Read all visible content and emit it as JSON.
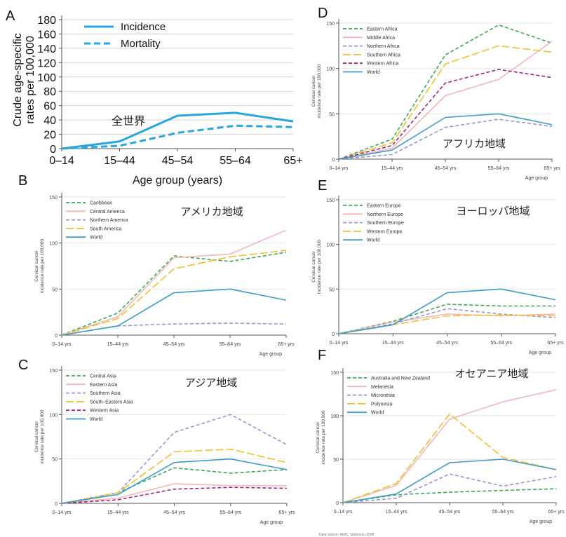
{
  "chart_data": [
    {
      "panel": "A",
      "type": "line",
      "title": "全世界",
      "xlabel": "Age group (years)",
      "ylabel": "Crude age-specific rates per 100,000",
      "categories": [
        "0–14",
        "15–44",
        "45–54",
        "55–64",
        "65+"
      ],
      "yticks": [
        "0",
        "20",
        "40",
        "60",
        "80",
        "100",
        "120",
        "140",
        "160",
        "180"
      ],
      "ylim": [
        0,
        180
      ],
      "grid": true,
      "legend_position": "top-left",
      "series": [
        {
          "name": "Incidence",
          "color": "#26a7df",
          "dash": "solid",
          "values": [
            0,
            10,
            46,
            50,
            38
          ]
        },
        {
          "name": "Mortality",
          "color": "#26a7df",
          "dash": "dashed",
          "values": [
            0,
            4,
            22,
            32,
            30
          ]
        }
      ]
    },
    {
      "panel": "D",
      "type": "line",
      "title": "アフリカ地域",
      "xlabel": "Age group",
      "ylabel": "Cervical cancer incidence rate per 100,000",
      "categories": [
        "0–14 yrs",
        "15–44 yrs",
        "45–54 yrs",
        "55–64 yrs",
        "65+ yrs"
      ],
      "yticks": [
        "0",
        "50",
        "100",
        "150"
      ],
      "ylim": [
        0,
        150
      ],
      "grid": true,
      "legend_position": "top-left",
      "series": [
        {
          "name": "Eastern Africa",
          "color": "#3aaa55",
          "dash": "dashed",
          "values": [
            0,
            22,
            115,
            148,
            128
          ]
        },
        {
          "name": "Middle Africa",
          "color": "#f2b8ba",
          "dash": "solid",
          "values": [
            0,
            12,
            70,
            88,
            130
          ]
        },
        {
          "name": "Northern Africa",
          "color": "#9b95d8",
          "dash": "dashed",
          "values": [
            0,
            5,
            35,
            44,
            36
          ]
        },
        {
          "name": "Southern Africa",
          "color": "#f3c02d",
          "dash": "longdash",
          "values": [
            0,
            18,
            105,
            125,
            118
          ]
        },
        {
          "name": "Western Africa",
          "color": "#a3237e",
          "dash": "dashed",
          "values": [
            0,
            15,
            84,
            99,
            90
          ]
        },
        {
          "name": "World",
          "color": "#3c9ec8",
          "dash": "solid",
          "values": [
            0,
            10,
            46,
            50,
            38
          ]
        }
      ]
    },
    {
      "panel": "B",
      "type": "line",
      "title": "アメリカ地域",
      "xlabel": "Age group",
      "ylabel": "Cervical cancer incidence rate per 100,000",
      "categories": [
        "0–14 yrs",
        "15–44 yrs",
        "45–54 yrs",
        "55–64 yrs",
        "65+ yrs"
      ],
      "yticks": [
        "0",
        "50",
        "100",
        "150"
      ],
      "ylim": [
        0,
        150
      ],
      "grid": true,
      "legend_position": "top-left",
      "series": [
        {
          "name": "Caribbean",
          "color": "#3aaa55",
          "dash": "dashed",
          "values": [
            0,
            24,
            86,
            80,
            90
          ]
        },
        {
          "name": "Central America",
          "color": "#f2b8ba",
          "dash": "solid",
          "values": [
            0,
            20,
            84,
            88,
            114
          ]
        },
        {
          "name": "Northern America",
          "color": "#9b95d8",
          "dash": "dashed",
          "values": [
            0,
            10,
            12,
            13,
            12
          ]
        },
        {
          "name": "South America",
          "color": "#f3c02d",
          "dash": "longdash",
          "values": [
            0,
            18,
            72,
            85,
            92
          ]
        },
        {
          "name": "World",
          "color": "#3c9ec8",
          "dash": "solid",
          "values": [
            0,
            10,
            46,
            50,
            38
          ]
        }
      ]
    },
    {
      "panel": "E",
      "type": "line",
      "title": "ヨーロッパ地域",
      "xlabel": "Age group",
      "ylabel": "Cervical cancer incidence rate per 100,000",
      "categories": [
        "0–14 yrs",
        "15–44 yrs",
        "45–54 yrs",
        "55–64 yrs",
        "65+ yrs"
      ],
      "yticks": [
        "0",
        "50",
        "100",
        "150"
      ],
      "ylim": [
        0,
        150
      ],
      "grid": true,
      "legend_position": "top-left",
      "series": [
        {
          "name": "Eastern Europe",
          "color": "#3aaa55",
          "dash": "dashed",
          "values": [
            0,
            14,
            33,
            31,
            31
          ]
        },
        {
          "name": "Northern Europe",
          "color": "#f2b8ba",
          "dash": "solid",
          "values": [
            0,
            13,
            22,
            20,
            22
          ]
        },
        {
          "name": "Southern Europe",
          "color": "#9b95d8",
          "dash": "dashed",
          "values": [
            0,
            11,
            28,
            22,
            18
          ]
        },
        {
          "name": "Western Europe",
          "color": "#f3c02d",
          "dash": "longdash",
          "values": [
            0,
            10,
            20,
            21,
            20
          ]
        },
        {
          "name": "World",
          "color": "#3c9ec8",
          "dash": "solid",
          "values": [
            0,
            10,
            46,
            50,
            38
          ]
        }
      ]
    },
    {
      "panel": "C",
      "type": "line",
      "title": "アジア地域",
      "xlabel": "Age group",
      "ylabel": "Cervical cancer incidence rate per 100,000",
      "categories": [
        "0–14 yrs",
        "15–44 yrs",
        "45–54 yrs",
        "55–64 yrs",
        "65+ yrs"
      ],
      "yticks": [
        "0",
        "50",
        "100",
        "150"
      ],
      "ylim": [
        0,
        150
      ],
      "grid": true,
      "legend_position": "top-left",
      "series": [
        {
          "name": "Central Asia",
          "color": "#3aaa55",
          "dash": "dashed",
          "values": [
            0,
            12,
            40,
            34,
            38
          ]
        },
        {
          "name": "Eastern Asia",
          "color": "#f2b8ba",
          "dash": "solid",
          "values": [
            0,
            6,
            22,
            20,
            20
          ]
        },
        {
          "name": "Southern Asia",
          "color": "#9b95d8",
          "dash": "dashed",
          "values": [
            0,
            12,
            80,
            100,
            66
          ]
        },
        {
          "name": "South–Eastern Asia",
          "color": "#f3c02d",
          "dash": "longdash",
          "values": [
            0,
            12,
            58,
            61,
            46
          ]
        },
        {
          "name": "Western Asia",
          "color": "#a3237e",
          "dash": "dashed",
          "values": [
            0,
            4,
            16,
            18,
            17
          ]
        },
        {
          "name": "World",
          "color": "#3c9ec8",
          "dash": "solid",
          "values": [
            0,
            10,
            46,
            50,
            38
          ]
        }
      ]
    },
    {
      "panel": "F",
      "type": "line",
      "title": "オセアニア地域",
      "xlabel": "Age group",
      "ylabel": "Cervical cancer incidence rate per 100,000",
      "categories": [
        "0–14 yrs",
        "15–44 yrs",
        "45–54 yrs",
        "55–64 yrs",
        "65+ yrs"
      ],
      "yticks": [
        "0",
        "50",
        "100",
        "150"
      ],
      "ylim": [
        0,
        150
      ],
      "grid": true,
      "legend_position": "top-left",
      "series": [
        {
          "name": "Australia and New Zealand",
          "color": "#3aaa55",
          "dash": "dashed",
          "values": [
            0,
            9,
            12,
            14,
            16
          ]
        },
        {
          "name": "Melanesia",
          "color": "#f2b8ba",
          "dash": "solid",
          "values": [
            0,
            20,
            96,
            116,
            130
          ]
        },
        {
          "name": "Micronesia",
          "color": "#9b95d8",
          "dash": "dashed",
          "values": [
            0,
            5,
            33,
            19,
            30
          ]
        },
        {
          "name": "Polynesia",
          "color": "#f3c02d",
          "dash": "longdash",
          "values": [
            0,
            22,
            102,
            52,
            38
          ]
        },
        {
          "name": "World",
          "color": "#3c9ec8",
          "dash": "solid",
          "values": [
            0,
            10,
            46,
            50,
            38
          ]
        }
      ]
    }
  ],
  "source_note": "Data source: IARC, Globocan 2008"
}
